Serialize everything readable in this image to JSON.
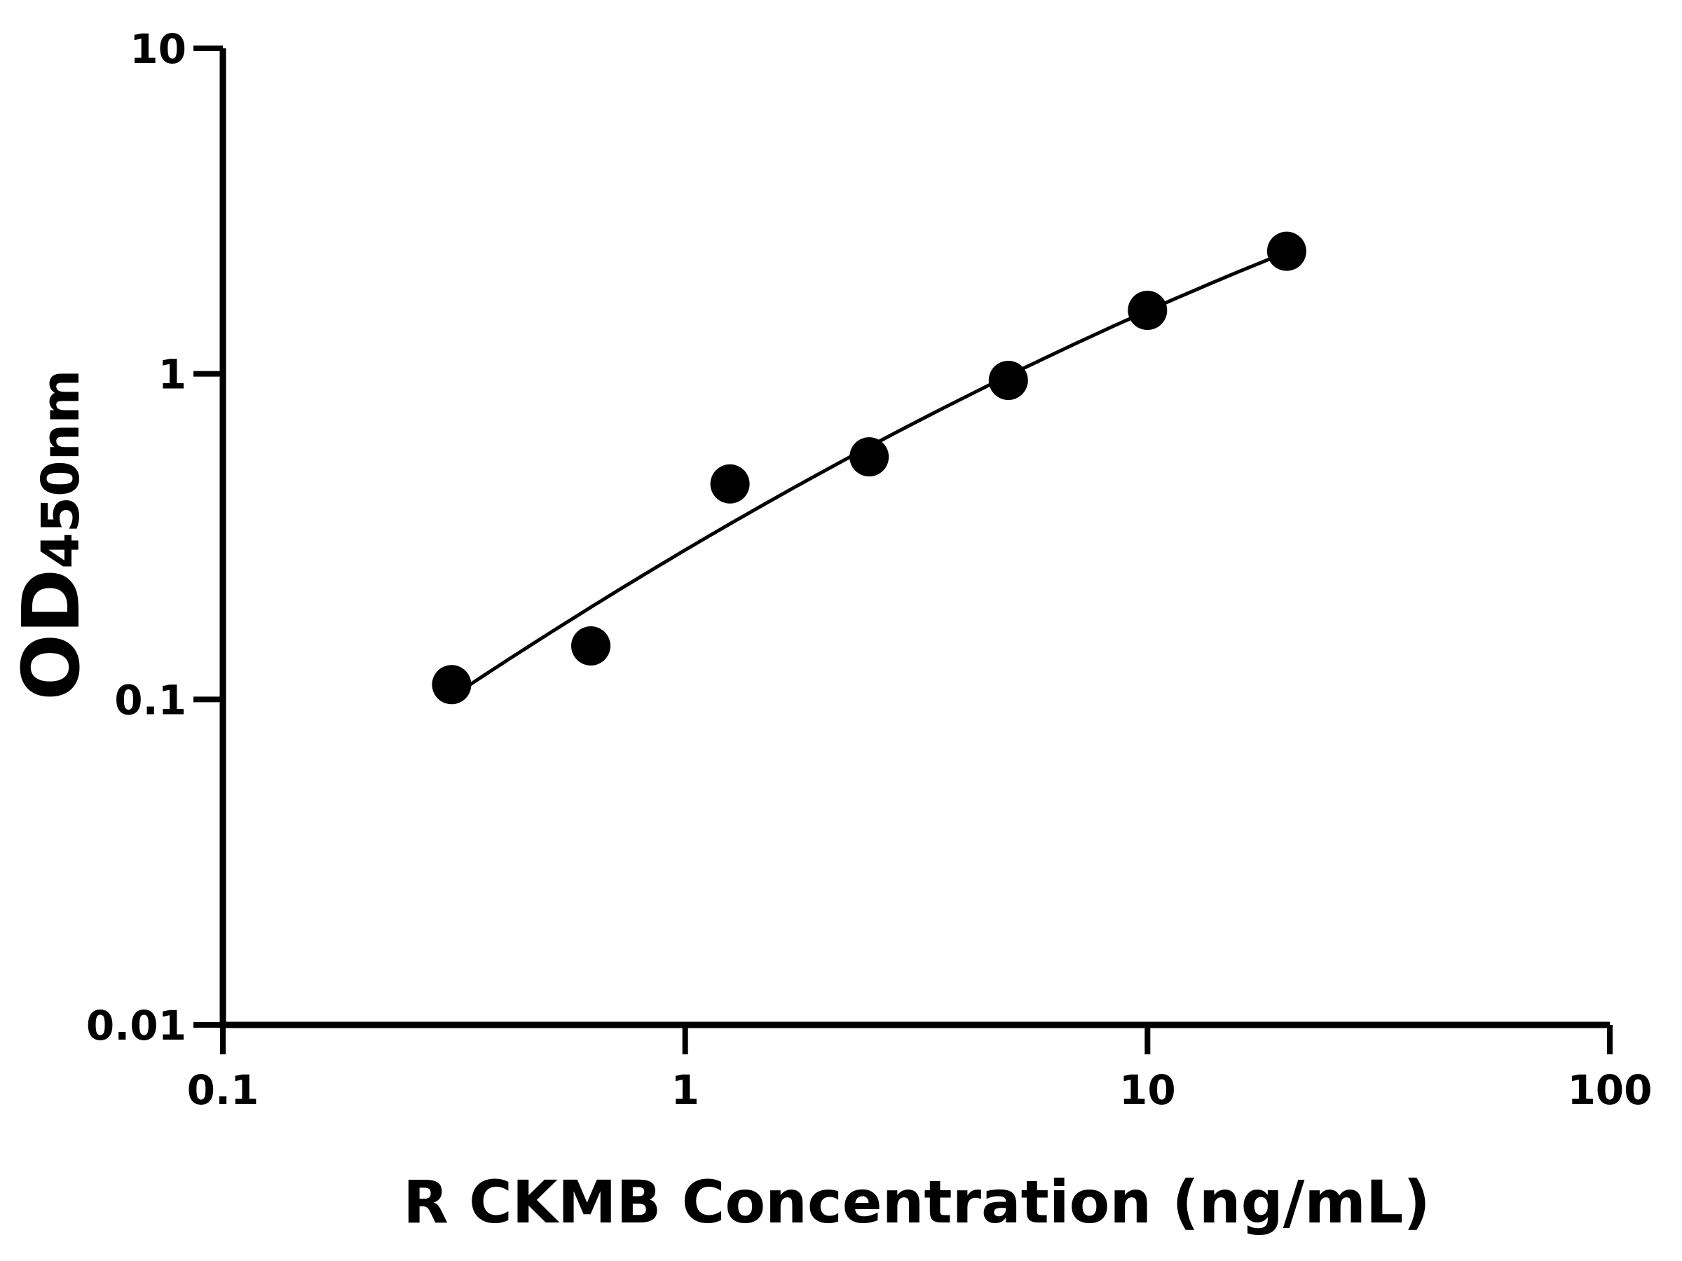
{
  "chart_data": {
    "type": "scatter",
    "title": "",
    "xlabel": "R CKMB Concentration (ng/mL)",
    "ylabel_main": "OD",
    "ylabel_sub": "450nm",
    "xscale": "log",
    "yscale": "log",
    "xlim": [
      0.1,
      100
    ],
    "ylim": [
      0.01,
      10
    ],
    "xticks": [
      "0.1",
      "1",
      "10",
      "100"
    ],
    "yticks": [
      "0.01",
      "0.1",
      "1",
      "10"
    ],
    "grid": false,
    "fit_curve": true,
    "series": [
      {
        "x": [
          0.3125,
          0.625,
          1.25,
          2.5,
          5,
          10,
          20
        ],
        "y": [
          0.111,
          0.146,
          0.459,
          0.556,
          0.955,
          1.567,
          2.38
        ]
      }
    ],
    "colors": {
      "marker": "#000000",
      "line": "#000000"
    }
  }
}
